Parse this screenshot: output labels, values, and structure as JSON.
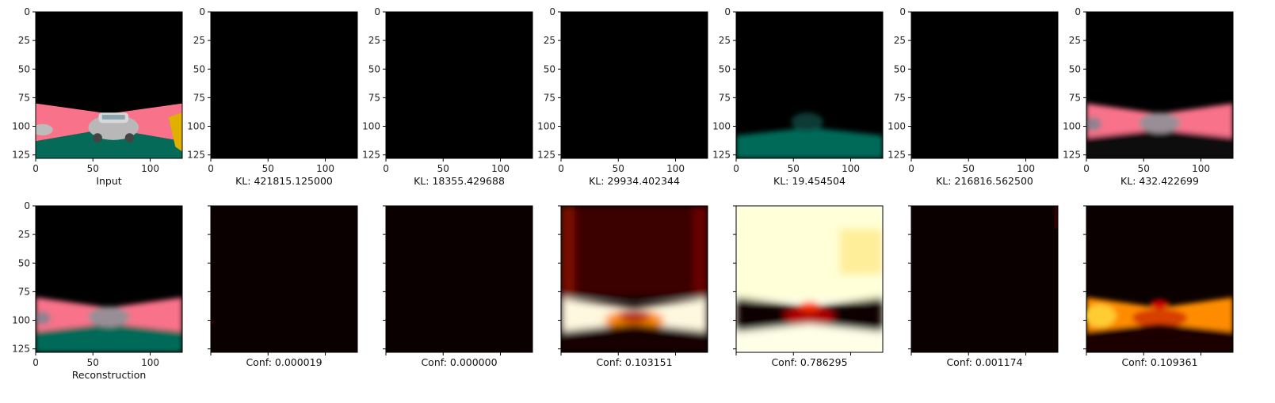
{
  "chart_data": {
    "type": "image-grid",
    "description": "Two rows of 7 image panels (matplotlib imshow). Top row: input image and 6 reconstructions with KL values. Bottom row: reconstruction and 6 confidence heatmaps (hot colormap).",
    "x_ticks": [
      0,
      50,
      100
    ],
    "y_ticks": [
      0,
      25,
      50,
      75,
      100,
      125
    ],
    "image_size": [
      128,
      128
    ],
    "top_row": [
      {
        "label": "Input",
        "kind": "input"
      },
      {
        "label": "KL: 421815.125000",
        "kind": "black"
      },
      {
        "label": "KL: 18355.429688",
        "kind": "black"
      },
      {
        "label": "KL: 29934.402344",
        "kind": "black"
      },
      {
        "label": "KL: 19.454504",
        "kind": "faint"
      },
      {
        "label": "KL: 216816.562500",
        "kind": "black"
      },
      {
        "label": "KL: 432.422699",
        "kind": "recon"
      }
    ],
    "bottom_row": [
      {
        "label": "Reconstruction",
        "kind": "recon",
        "conf": null
      },
      {
        "label": "Conf: 0.000019",
        "kind": "dark",
        "conf": 1.9e-05
      },
      {
        "label": "Conf: 0.000000",
        "kind": "dark",
        "conf": 0.0
      },
      {
        "label": "Conf: 0.103151",
        "kind": "heat_road",
        "conf": 0.103151
      },
      {
        "label": "Conf: 0.786295",
        "kind": "heat_sky",
        "conf": 0.786295
      },
      {
        "label": "Conf: 0.001174",
        "kind": "dark",
        "conf": 0.001174
      },
      {
        "label": "Conf: 0.109361",
        "kind": "heat_orange",
        "conf": 0.109361
      }
    ],
    "colors": {
      "road_pink": "#f8728a",
      "ground_teal": "#066a58",
      "hot_dark": "#0b0000",
      "hot_red": "#b00000",
      "hot_orange": "#ff8c00",
      "hot_yellow": "#ffff66"
    }
  }
}
